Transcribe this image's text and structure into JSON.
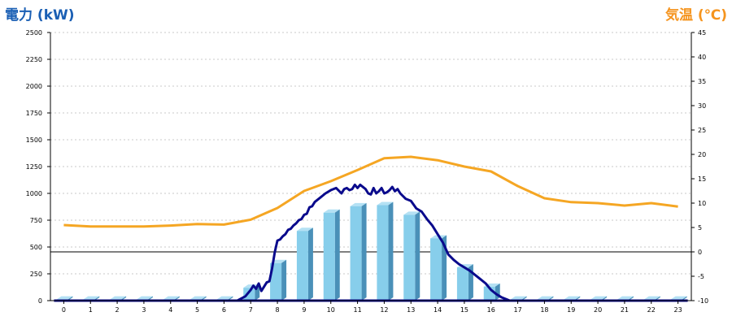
{
  "chart_data": {
    "type": "bar",
    "title_left": "電力 (kW)",
    "title_right": "気温 (℃)",
    "colors": {
      "title_left": "#1a5fb4",
      "title_right": "#f5941e",
      "bar_front": "#87ceeb",
      "bar_side": "#4a90b8",
      "bar_top": "#b4e1f4",
      "power_line": "#0a0a8c",
      "temp_line": "#f5a623",
      "grid": "#c8c8c8"
    },
    "x_categories": [
      "0",
      "1",
      "2",
      "3",
      "4",
      "5",
      "6",
      "7",
      "8",
      "9",
      "10",
      "11",
      "12",
      "13",
      "14",
      "15",
      "16",
      "17",
      "18",
      "19",
      "20",
      "21",
      "22",
      "23"
    ],
    "y_left": {
      "label": "電力 (kW)",
      "ylim": [
        0,
        2500
      ],
      "ticks": [
        0,
        250,
        500,
        750,
        1000,
        1250,
        1500,
        1750,
        2000,
        2250,
        2500
      ]
    },
    "y_right": {
      "label": "気温 (℃)",
      "ylim": [
        -10,
        45
      ],
      "ticks": [
        -10,
        -5,
        0,
        5,
        10,
        15,
        20,
        25,
        30,
        35,
        40,
        45
      ]
    },
    "grid": true,
    "zero_line_right_axis": 0,
    "series": [
      {
        "type": "bar",
        "axis": "left",
        "values": [
          10,
          10,
          10,
          10,
          10,
          10,
          10,
          120,
          350,
          650,
          820,
          880,
          890,
          800,
          580,
          310,
          130,
          10,
          10,
          10,
          10,
          10,
          10,
          10
        ]
      },
      {
        "type": "line",
        "axis": "left",
        "x": [
          6.5,
          6.8,
          7.0,
          7.1,
          7.2,
          7.3,
          7.4,
          7.5,
          7.6,
          7.7,
          7.8,
          7.9,
          8.0,
          8.1,
          8.2,
          8.3,
          8.4,
          8.5,
          8.6,
          8.7,
          8.8,
          8.9,
          9.0,
          9.1,
          9.2,
          9.3,
          9.4,
          9.5,
          9.6,
          9.8,
          10.0,
          10.2,
          10.4,
          10.5,
          10.6,
          10.7,
          10.8,
          10.9,
          11.0,
          11.1,
          11.2,
          11.3,
          11.4,
          11.5,
          11.6,
          11.7,
          11.8,
          11.9,
          12.0,
          12.1,
          12.2,
          12.3,
          12.4,
          12.5,
          12.6,
          12.8,
          13.0,
          13.2,
          13.4,
          13.6,
          13.8,
          14.0,
          14.2,
          14.4,
          14.6,
          14.8,
          15.0,
          15.2,
          15.4,
          15.6,
          15.8,
          16.0,
          16.2,
          16.4,
          16.6,
          16.7
        ],
        "values": [
          0,
          40,
          100,
          140,
          110,
          160,
          90,
          130,
          170,
          180,
          300,
          450,
          560,
          570,
          600,
          620,
          660,
          670,
          700,
          720,
          750,
          760,
          800,
          810,
          870,
          880,
          920,
          940,
          960,
          1000,
          1030,
          1050,
          1000,
          1040,
          1050,
          1030,
          1040,
          1080,
          1050,
          1080,
          1060,
          1040,
          1000,
          990,
          1050,
          1000,
          1020,
          1050,
          1000,
          1010,
          1030,
          1060,
          1020,
          1040,
          1000,
          950,
          930,
          860,
          830,
          760,
          700,
          620,
          540,
          430,
          380,
          340,
          310,
          280,
          240,
          200,
          160,
          100,
          60,
          30,
          10,
          0
        ]
      },
      {
        "type": "line",
        "axis": "right",
        "x": [
          0,
          1,
          2,
          3,
          4,
          5,
          6,
          7,
          8,
          9,
          10,
          11,
          12,
          13,
          14,
          15,
          16,
          17,
          18,
          19,
          20,
          21,
          22,
          23
        ],
        "values": [
          5.5,
          5.2,
          5.2,
          5.2,
          5.4,
          5.7,
          5.6,
          6.6,
          9.0,
          12.5,
          14.5,
          16.8,
          19.2,
          19.5,
          18.8,
          17.5,
          16.5,
          13.5,
          11.0,
          10.2,
          10.0,
          9.5,
          10.0,
          9.3
        ]
      }
    ]
  }
}
